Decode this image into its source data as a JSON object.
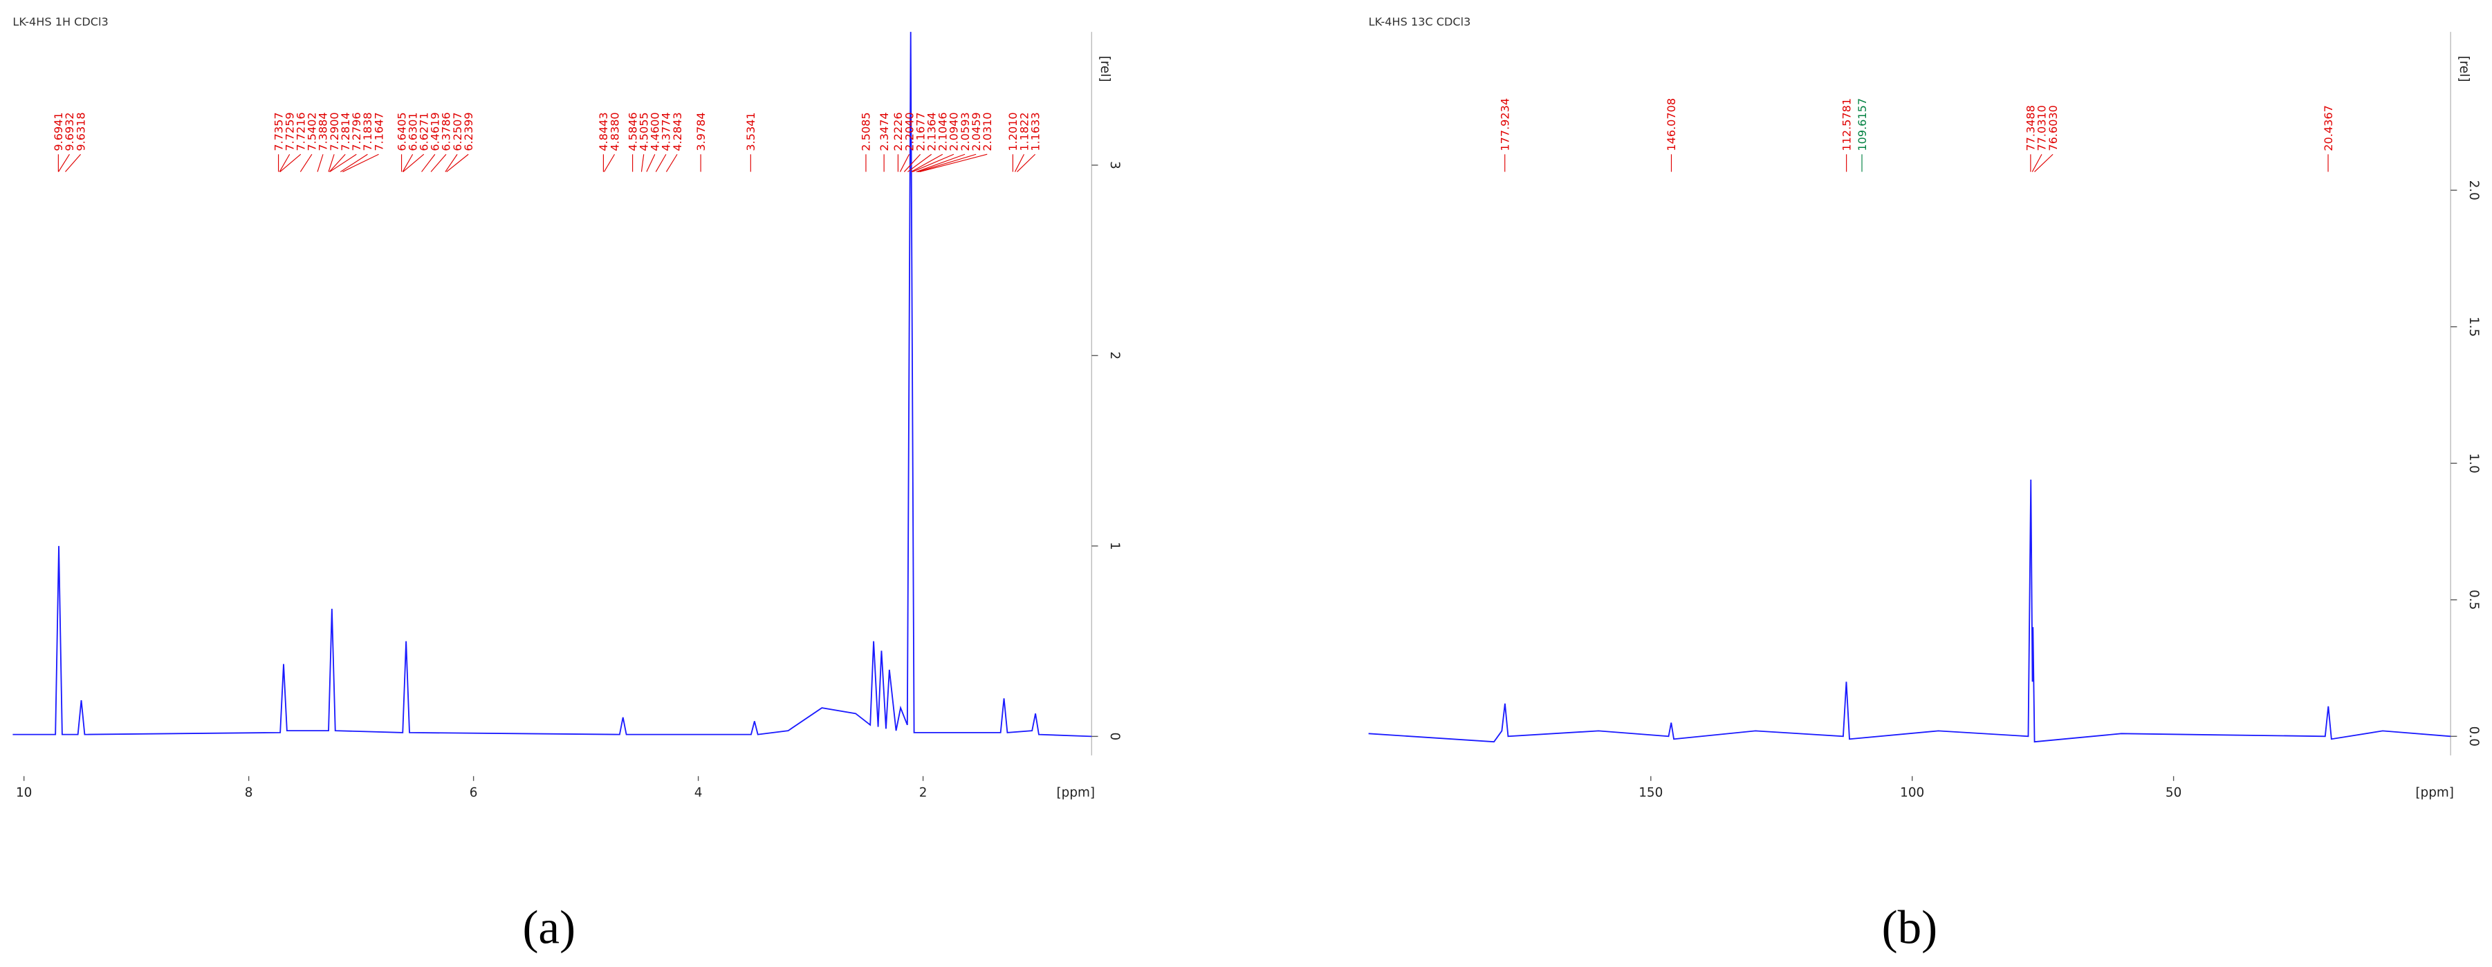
{
  "chart_data": [
    {
      "type": "line",
      "header": "LK-4HS 1H CDCl3",
      "caption": "(a)",
      "xlabel": "[ppm]",
      "ylabel": "[rel]",
      "color": "#1a1aff",
      "xlim": [
        10.1,
        0.5
      ],
      "ylim": [
        -0.1,
        3.7
      ],
      "xticks": [
        10,
        8,
        6,
        4,
        2
      ],
      "yticks": [
        0,
        1,
        2,
        3
      ],
      "x": [
        10.1,
        9.72,
        9.69,
        9.66,
        9.52,
        9.49,
        9.46,
        7.72,
        7.69,
        7.66,
        7.29,
        7.26,
        7.23,
        6.63,
        6.6,
        6.57,
        4.7,
        4.67,
        4.64,
        3.53,
        3.5,
        3.47,
        3.2,
        2.9,
        2.6,
        2.47,
        2.44,
        2.4,
        2.37,
        2.33,
        2.3,
        2.24,
        2.2,
        2.14,
        2.11,
        2.08,
        1.31,
        1.28,
        1.25,
        1.03,
        1.0,
        0.97,
        0.5
      ],
      "values": [
        0.01,
        0.01,
        1.0,
        0.01,
        0.01,
        0.19,
        0.01,
        0.02,
        0.38,
        0.03,
        0.03,
        0.67,
        0.03,
        0.02,
        0.5,
        0.02,
        0.01,
        0.1,
        0.01,
        0.01,
        0.08,
        0.01,
        0.03,
        0.15,
        0.12,
        0.06,
        0.5,
        0.05,
        0.45,
        0.04,
        0.35,
        0.03,
        0.15,
        0.06,
        3.7,
        0.02,
        0.02,
        0.2,
        0.02,
        0.03,
        0.12,
        0.01,
        0.0
      ],
      "peak_color": "#e00000",
      "peak_labels": [
        {
          "value": 9.6941,
          "label": "9.6941"
        },
        {
          "value": 9.6932,
          "label": "9.6932"
        },
        {
          "value": 9.6318,
          "label": "9.6318"
        },
        {
          "value": 7.7357,
          "label": "7.7357"
        },
        {
          "value": 7.7259,
          "label": "7.7259"
        },
        {
          "value": 7.7216,
          "label": "7.7216"
        },
        {
          "value": 7.5402,
          "label": "7.5402"
        },
        {
          "value": 7.3884,
          "label": "7.3884"
        },
        {
          "value": 7.29,
          "label": "7.2900"
        },
        {
          "value": 7.2814,
          "label": "7.2814"
        },
        {
          "value": 7.2796,
          "label": "7.2796"
        },
        {
          "value": 7.1838,
          "label": "7.1838"
        },
        {
          "value": 7.1647,
          "label": "7.1647"
        },
        {
          "value": 6.6405,
          "label": "6.6405"
        },
        {
          "value": 6.6301,
          "label": "6.6301"
        },
        {
          "value": 6.6271,
          "label": "6.6271"
        },
        {
          "value": 6.4619,
          "label": "6.4619"
        },
        {
          "value": 6.3786,
          "label": "6.3786"
        },
        {
          "value": 6.2507,
          "label": "6.2507"
        },
        {
          "value": 6.2399,
          "label": "6.2399"
        },
        {
          "value": 4.8443,
          "label": "4.8443"
        },
        {
          "value": 4.838,
          "label": "4.8380"
        },
        {
          "value": 4.5846,
          "label": "4.5846"
        },
        {
          "value": 4.5055,
          "label": "4.5055"
        },
        {
          "value": 4.46,
          "label": "4.4600"
        },
        {
          "value": 4.3774,
          "label": "4.3774"
        },
        {
          "value": 4.2843,
          "label": "4.2843"
        },
        {
          "value": 3.9784,
          "label": "3.9784"
        },
        {
          "value": 3.5341,
          "label": "3.5341"
        },
        {
          "value": 2.5085,
          "label": "2.5085"
        },
        {
          "value": 2.3474,
          "label": "2.3474"
        },
        {
          "value": 2.2226,
          "label": "2.2226"
        },
        {
          "value": 2.204,
          "label": "2.2040"
        },
        {
          "value": 2.1677,
          "label": "2.1677"
        },
        {
          "value": 2.1364,
          "label": "2.1364"
        },
        {
          "value": 2.1046,
          "label": "2.1046"
        },
        {
          "value": 2.094,
          "label": "2.0940"
        },
        {
          "value": 2.0593,
          "label": "2.0593"
        },
        {
          "value": 2.0459,
          "label": "2.0459"
        },
        {
          "value": 2.031,
          "label": "2.0310"
        },
        {
          "value": 1.201,
          "label": "1.2010"
        },
        {
          "value": 1.1822,
          "label": "1.1822"
        },
        {
          "value": 1.1633,
          "label": "1.1633"
        }
      ]
    },
    {
      "type": "line",
      "header": "LK-4HS 13C CDCl3",
      "caption": "(b)",
      "xlabel": "[ppm]",
      "ylabel": "[rel]",
      "color": "#1a1aff",
      "xlim": [
        204,
        -3
      ],
      "ylim": [
        -0.07,
        2.58
      ],
      "xticks": [
        150,
        100,
        50
      ],
      "yticks": [
        {
          "value": 0,
          "label": "0.0"
        },
        {
          "value": 0.5,
          "label": "0.5"
        },
        {
          "value": 1,
          "label": "1.0"
        },
        {
          "value": 1.5,
          "label": "1.5"
        },
        {
          "value": 2,
          "label": "2.0"
        }
      ],
      "x": [
        204,
        180,
        178.5,
        177.9,
        177.3,
        160,
        146.6,
        146.1,
        145.6,
        130,
        113.2,
        112.6,
        112.0,
        95,
        77.8,
        77.3,
        77.0,
        76.9,
        76.6,
        60,
        21.0,
        20.4,
        19.8,
        10,
        -3
      ],
      "values": [
        0.01,
        -0.02,
        0.02,
        0.12,
        0.0,
        0.02,
        0.0,
        0.05,
        -0.01,
        0.02,
        0.0,
        0.2,
        -0.01,
        0.02,
        0.0,
        0.94,
        0.2,
        0.4,
        -0.02,
        0.01,
        0.0,
        0.11,
        -0.01,
        0.02,
        0.0
      ],
      "peak_color": "#e00000",
      "peak_labels": [
        {
          "value": 177.9234,
          "label": "177.9234"
        },
        {
          "value": 146.0708,
          "label": "146.0708"
        },
        {
          "value": 112.5781,
          "label": "112.5781"
        },
        {
          "value": 109.6157,
          "label": "109.6157",
          "color": "#008040"
        },
        {
          "value": 77.3488,
          "label": "77.3488"
        },
        {
          "value": 77.031,
          "label": "77.0310"
        },
        {
          "value": 76.603,
          "label": "76.6030"
        },
        {
          "value": 20.4367,
          "label": "20.4367"
        }
      ]
    }
  ]
}
